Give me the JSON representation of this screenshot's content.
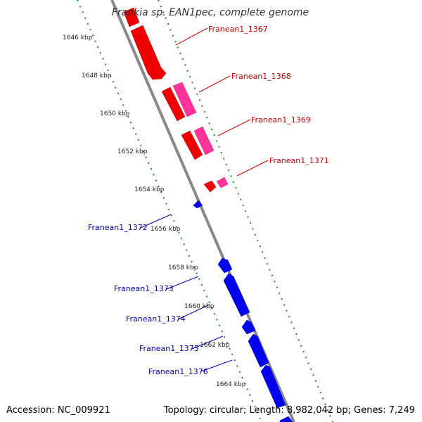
{
  "title": "Frankia sp. EAN1pec, complete genome",
  "footer": {
    "accession": "Accession: NC_009921",
    "summary": "Topology: circular; Length: 8,982,042 bp; Genes: 7,249"
  },
  "colors": {
    "forward_gene": "#ee0000",
    "forward_gene_alt": "#ff3399",
    "reverse_gene": "#0000ee",
    "backbone": "#888888",
    "ruler": "#228b22",
    "forward_label": "#cc0000",
    "reverse_label": "#0000aa"
  },
  "ruler_ticks": [
    "1646 kbp",
    "1648 kbp",
    "1650 kbp",
    "1652 kbp",
    "1654 kbp",
    "1656 kbp",
    "1658 kbp",
    "1660 kbp",
    "1662 kbp",
    "1664 kbp"
  ],
  "forward_labels": [
    "Franean1_1367",
    "Franean1_1368",
    "Franean1_1369",
    "Franean1_1371"
  ],
  "reverse_labels": [
    "Franean1_1372",
    "Franean1_1373",
    "Franean1_1374",
    "Franean1_1375",
    "Franean1_1376"
  ]
}
